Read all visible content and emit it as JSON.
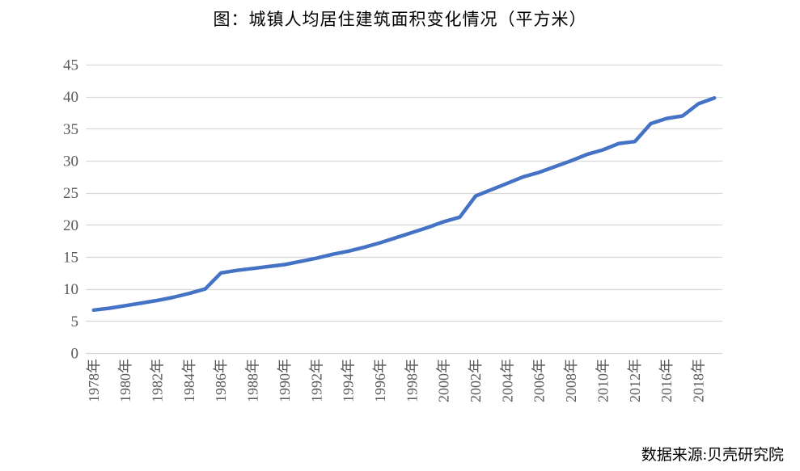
{
  "title": "图：城镇人均居住建筑面积变化情况（平方米）",
  "source": "数据来源:贝壳研究院",
  "chart_data": {
    "type": "line",
    "title": "图：城镇人均居住建筑面积变化情况（平方米）",
    "xlabel": "",
    "ylabel": "",
    "ylim": [
      0,
      45
    ],
    "y_ticks": [
      0,
      5,
      10,
      15,
      20,
      25,
      30,
      35,
      40,
      45
    ],
    "grid": true,
    "legend": "none",
    "line_color": "#4472C4",
    "grid_color": "#D9D9D9",
    "tick_color": "#595959",
    "x_tick_labels": [
      "1978年",
      "1980年",
      "1982年",
      "1984年",
      "1986年",
      "1988年",
      "1990年",
      "1992年",
      "1994年",
      "1996年",
      "1998年",
      "2000年",
      "2002年",
      "2004年",
      "2006年",
      "2008年",
      "2010年",
      "2012年",
      "2016年",
      "2018年"
    ],
    "categories": [
      "1978",
      "1979",
      "1980",
      "1981",
      "1982",
      "1983",
      "1984",
      "1985",
      "1986",
      "1987",
      "1988",
      "1989",
      "1990",
      "1991",
      "1992",
      "1993",
      "1994",
      "1995",
      "1996",
      "1997",
      "1998",
      "1999",
      "2000",
      "2001",
      "2002",
      "2003",
      "2004",
      "2005",
      "2006",
      "2007",
      "2008",
      "2009",
      "2010",
      "2011",
      "2012",
      "2015",
      "2016",
      "2017",
      "2018",
      "2019"
    ],
    "values": [
      6.7,
      7.0,
      7.4,
      7.8,
      8.2,
      8.7,
      9.3,
      10.0,
      12.5,
      12.9,
      13.2,
      13.5,
      13.8,
      14.3,
      14.8,
      15.4,
      15.9,
      16.5,
      17.2,
      18.0,
      18.8,
      19.6,
      20.5,
      21.2,
      24.5,
      25.5,
      26.5,
      27.5,
      28.2,
      29.1,
      30.0,
      31.0,
      31.7,
      32.7,
      33.0,
      35.8,
      36.6,
      37.0,
      38.9,
      39.8
    ],
    "source_note": "数据来源:贝壳研究院"
  }
}
